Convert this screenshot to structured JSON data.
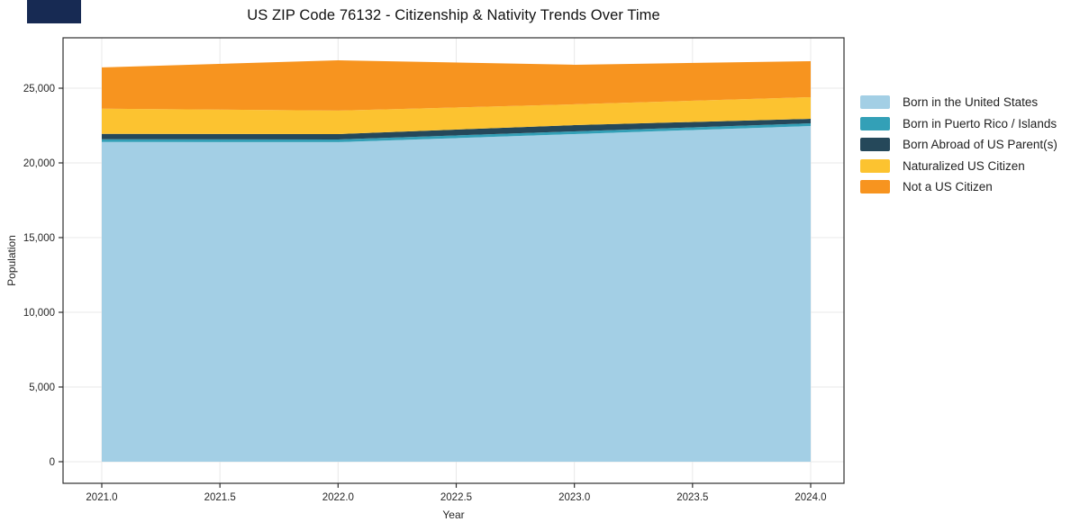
{
  "header": {
    "title": "US ZIP Code 76132 - Citizenship & Nativity Trends Over Time"
  },
  "chart_data": {
    "type": "area",
    "stacked": true,
    "title": "US ZIP Code 76132 - Citizenship & Nativity Trends Over Time",
    "xlabel": "Year",
    "ylabel": "Population",
    "x": [
      2021,
      2022,
      2023,
      2024
    ],
    "series": [
      {
        "name": "Born in the United States",
        "color": "#a3cfe5",
        "values": [
          21400,
          21390,
          21930,
          22470
        ]
      },
      {
        "name": "Born in Puerto Rico / Islands",
        "color": "#33a0b7",
        "values": [
          180,
          180,
          180,
          180
        ]
      },
      {
        "name": "Born Abroad of US Parent(s)",
        "color": "#25485a",
        "values": [
          360,
          360,
          420,
          300
        ]
      },
      {
        "name": "Naturalized US Citizen",
        "color": "#fcc330",
        "values": [
          1690,
          1570,
          1390,
          1450
        ]
      },
      {
        "name": "Not a US Citizen",
        "color": "#f7941f",
        "values": [
          2760,
          3370,
          2650,
          2410
        ]
      }
    ],
    "totals": [
      26390,
      26870,
      26570,
      26810
    ],
    "xticks": [
      2021.0,
      2021.5,
      2022.0,
      2022.5,
      2023.0,
      2023.5,
      2024.0
    ],
    "xtick_labels": [
      "2021.0",
      "2021.5",
      "2022.0",
      "2022.5",
      "2023.0",
      "2023.5",
      "2024.0"
    ],
    "yticks": [
      0,
      5000,
      10000,
      15000,
      20000,
      25000
    ],
    "ytick_labels": [
      "0",
      "5,000",
      "10,000",
      "15,000",
      "20,000",
      "25,000"
    ],
    "xlim": [
      2020.85,
      2024.15
    ],
    "ylim": [
      -1450,
      28400
    ],
    "grid": true,
    "legend_position": "right"
  },
  "colors": {
    "grid": "#e8e8e8",
    "spine": "#2e2e2e",
    "text": "#262626",
    "background": "#ffffff",
    "window_fragment": "#172a53"
  }
}
